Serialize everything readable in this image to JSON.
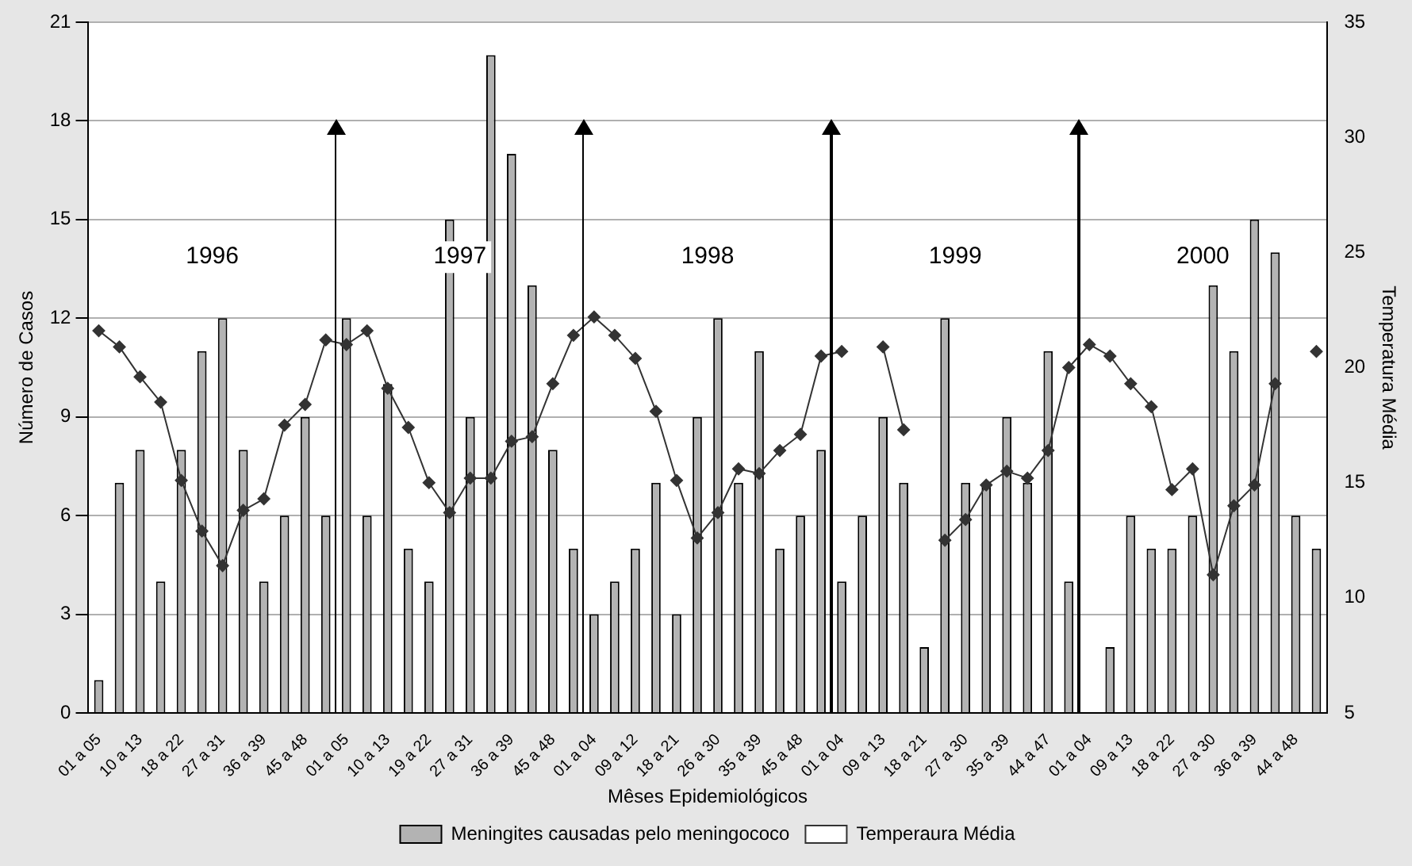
{
  "chart_data": {
    "type": "bar",
    "xlabel": "Mêses Epidemiológicos",
    "ylabel": "Número de Casos",
    "y2label": "Temperatura Média",
    "categories": [
      "01 a 05",
      null,
      "10 a 13",
      null,
      "18 a 22",
      null,
      "27 a 31",
      null,
      "36 a 39",
      null,
      "45 a 48",
      null,
      "01 a 05",
      null,
      "10 a 13",
      null,
      "19 a 22",
      null,
      "27 a 31",
      null,
      "36 a 39",
      null,
      "45 a 48",
      null,
      "01 a 04",
      null,
      "09 a 12",
      null,
      "18 a 21",
      null,
      "26 a 30",
      null,
      "35 a 39",
      null,
      "45 a 48",
      null,
      "01 a 04",
      null,
      "09 a 13",
      null,
      "18 a 21",
      null,
      "27 a 30",
      null,
      "35 a 39",
      null,
      "44 a 47",
      null,
      "01 a 04",
      null,
      "09 a 13",
      null,
      "18 a 22",
      null,
      "27 a 30",
      null,
      "36 a 39",
      null,
      "44 a 48",
      null
    ],
    "series": [
      {
        "name": "Meningites causadas pelo meningococo",
        "color": "#b3b3b3",
        "values": [
          1,
          7,
          8,
          4,
          8,
          11,
          12,
          8,
          4,
          6,
          9,
          6,
          12,
          6,
          10,
          5,
          4,
          15,
          9,
          20,
          17,
          13,
          8,
          5,
          3,
          4,
          5,
          7,
          3,
          9,
          12,
          7,
          11,
          5,
          6,
          8,
          4,
          6,
          9,
          7,
          2,
          12,
          7,
          7,
          9,
          7,
          11,
          4,
          0,
          2,
          6,
          5,
          5,
          6,
          13,
          11,
          15,
          14,
          6,
          5
        ]
      },
      {
        "name": "Temperaura Média",
        "type": "line",
        "axis": "y2",
        "color": "#333333",
        "values": [
          21.6,
          20.9,
          19.6,
          18.5,
          15.1,
          12.9,
          11.4,
          13.8,
          14.3,
          17.5,
          18.4,
          21.2,
          21.0,
          21.6,
          19.1,
          17.4,
          15.0,
          13.7,
          15.2,
          15.2,
          16.8,
          17.0,
          19.3,
          21.4,
          22.2,
          21.4,
          20.4,
          18.1,
          15.1,
          12.6,
          13.7,
          15.6,
          15.4,
          16.4,
          17.1,
          20.5,
          20.7,
          null,
          20.9,
          17.3,
          null,
          12.5,
          13.4,
          14.9,
          15.5,
          15.2,
          16.4,
          20.0,
          21.0,
          20.5,
          19.3,
          18.3,
          14.7,
          15.6,
          11.0,
          14.0,
          14.9,
          19.3,
          null,
          20.7
        ]
      }
    ],
    "ylim": [
      0,
      21
    ],
    "yticks": [
      0,
      3,
      6,
      9,
      12,
      15,
      18,
      21
    ],
    "y2lim": [
      5,
      35
    ],
    "y2ticks": [
      5,
      10,
      15,
      20,
      25,
      30,
      35
    ],
    "grid": "y",
    "legend": "bottom",
    "marker": "diamond",
    "annotations": [
      "1996",
      "1997",
      "1998",
      "1999",
      "2000"
    ]
  }
}
